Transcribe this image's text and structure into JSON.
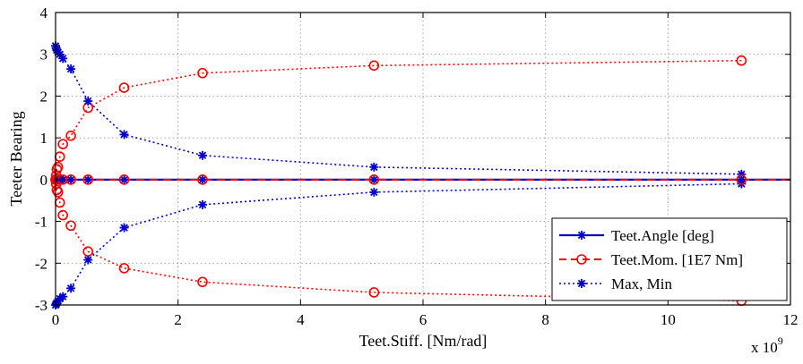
{
  "chart_data": {
    "type": "line",
    "title": "",
    "xlabel": "Teet.Stiff. [Nm/rad]",
    "ylabel": "Teeter Bearing",
    "x_multiplier_text": "x 10",
    "x_multiplier_exp": "9",
    "xlim": [
      0,
      12
    ],
    "ylim": [
      -3,
      4
    ],
    "x_ticks": [
      0,
      2,
      4,
      6,
      8,
      10,
      12
    ],
    "y_ticks": [
      -3,
      -2,
      -1,
      0,
      1,
      2,
      3,
      4
    ],
    "grid": true,
    "legend_position": "bottom-right",
    "x": [
      0.0,
      0.01,
      0.02,
      0.04,
      0.07,
      0.12,
      0.25,
      0.53,
      1.12,
      2.4,
      5.2,
      11.2
    ],
    "series": [
      {
        "name": "Teet.Angle [deg]",
        "color": "#0000cc",
        "line_style": "solid",
        "marker": "asterisk",
        "values": [
          0,
          0,
          0,
          0,
          0,
          0,
          0,
          0,
          0,
          0,
          0,
          0
        ]
      },
      {
        "name": "Teet.Mom. [1E7 Nm]",
        "color": "#ff0000",
        "line_style": "dashed",
        "marker": "circle",
        "values": [
          0,
          0,
          0,
          0,
          0,
          0,
          0,
          0,
          0,
          0,
          0,
          0
        ],
        "envelope_upper": [
          0.0,
          0.1,
          0.25,
          0.3,
          0.55,
          0.85,
          1.05,
          1.72,
          2.2,
          2.55,
          2.73,
          2.85
        ],
        "envelope_lower": [
          0.0,
          -0.1,
          -0.25,
          -0.3,
          -0.55,
          -0.85,
          -1.1,
          -1.72,
          -2.12,
          -2.45,
          -2.7,
          -2.9
        ]
      },
      {
        "name": "Max, Min",
        "color": "#0000cc",
        "line_style": "dotted",
        "marker": "asterisk",
        "upper": [
          3.2,
          3.15,
          3.1,
          3.05,
          3.0,
          2.9,
          2.65,
          1.88,
          1.08,
          0.58,
          0.3,
          0.13
        ],
        "lower": [
          -3.0,
          -2.98,
          -2.95,
          -2.9,
          -2.85,
          -2.8,
          -2.6,
          -1.92,
          -1.15,
          -0.6,
          -0.3,
          -0.1
        ]
      }
    ]
  }
}
